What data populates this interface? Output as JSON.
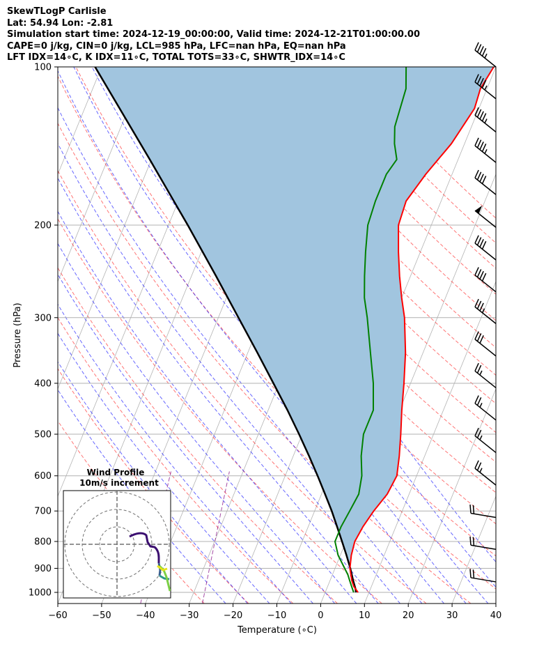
{
  "header": {
    "title": "SkewTLogP Carlisle",
    "location": "Lat: 54.94   Lon: -2.81",
    "times": "Simulation start time: 2024-12-19_00:00:00, Valid time: 2024-12-21T01:00:00.00",
    "indices1": "CAPE=0 j/kg, CIN=0 j/kg, LCL=985 hPa, LFC=nan hPa, EQ=nan hPa",
    "indices2": "LFT IDX=14∘C, K IDX=11∘C, TOTAL TOTS=33∘C, SHWTR_IDX=14∘C"
  },
  "inset": {
    "title": "Wind Profile",
    "subtitle": "10m/s increment"
  },
  "colors": {
    "temperature": "#ff0000",
    "dewpoint": "#008000",
    "parcel": "#000000",
    "shading": "#a1c5df",
    "dry_adiabat": "#ff0000",
    "moist_adiabat": "#0000ff",
    "mixing_ratio": "#800080",
    "isotherm": "#808080"
  },
  "chart_data": {
    "type": "line",
    "subtype": "skew-T log-P diagram",
    "xlabel": "Temperature (∘C)",
    "ylabel": "Pressure (hPa)",
    "xlim": [
      -60,
      40
    ],
    "ylim_hpa": [
      1050,
      100
    ],
    "y_scale": "log",
    "x_ticks": [
      -60,
      -50,
      -40,
      -30,
      -20,
      -10,
      0,
      10,
      20,
      30,
      40
    ],
    "y_ticks": [
      1000,
      900,
      800,
      700,
      600,
      500,
      400,
      300,
      200,
      100
    ],
    "grid": true,
    "series": [
      {
        "key": "temperature",
        "points": [
          [
            1000,
            7.5
          ],
          [
            975,
            6
          ],
          [
            950,
            5
          ],
          [
            925,
            4.2
          ],
          [
            900,
            3.4
          ],
          [
            850,
            2.5
          ],
          [
            800,
            2
          ],
          [
            750,
            2.5
          ],
          [
            700,
            3.5
          ],
          [
            650,
            5
          ],
          [
            600,
            5.5
          ],
          [
            550,
            4.2
          ],
          [
            500,
            2.5
          ],
          [
            450,
            0.5
          ],
          [
            400,
            -1.5
          ],
          [
            350,
            -4
          ],
          [
            300,
            -7.5
          ],
          [
            275,
            -10
          ],
          [
            250,
            -12.5
          ],
          [
            225,
            -15
          ],
          [
            200,
            -17.5
          ],
          [
            180,
            -18
          ],
          [
            160,
            -16
          ],
          [
            140,
            -13
          ],
          [
            120,
            -11
          ],
          [
            110,
            -11.5
          ],
          [
            100,
            -10.5
          ]
        ]
      },
      {
        "key": "dewpoint",
        "points": [
          [
            1000,
            6.5
          ],
          [
            975,
            5.5
          ],
          [
            950,
            4.5
          ],
          [
            925,
            3.5
          ],
          [
            900,
            2.2
          ],
          [
            850,
            -0.5
          ],
          [
            800,
            -2.5
          ],
          [
            750,
            -2.5
          ],
          [
            700,
            -2
          ],
          [
            650,
            -1.5
          ],
          [
            600,
            -2.5
          ],
          [
            550,
            -4.5
          ],
          [
            500,
            -6
          ],
          [
            450,
            -6
          ],
          [
            400,
            -8.5
          ],
          [
            350,
            -12
          ],
          [
            300,
            -16
          ],
          [
            275,
            -18.5
          ],
          [
            250,
            -20.5
          ],
          [
            225,
            -22.5
          ],
          [
            200,
            -24.5
          ],
          [
            180,
            -25
          ],
          [
            160,
            -25
          ],
          [
            150,
            -24
          ],
          [
            140,
            -26
          ],
          [
            130,
            -27.5
          ],
          [
            110,
            -28.5
          ],
          [
            100,
            -30.5
          ]
        ]
      },
      {
        "key": "parcel",
        "points": [
          [
            1000,
            7
          ],
          [
            985,
            6.6
          ],
          [
            950,
            5.3
          ],
          [
            900,
            3.5
          ],
          [
            850,
            1.4
          ],
          [
            800,
            -0.9
          ],
          [
            750,
            -3.4
          ],
          [
            700,
            -6.1
          ],
          [
            650,
            -9.2
          ],
          [
            600,
            -12.6
          ],
          [
            550,
            -16.4
          ],
          [
            500,
            -20.7
          ],
          [
            450,
            -25.6
          ],
          [
            400,
            -31.3
          ],
          [
            350,
            -37.8
          ],
          [
            300,
            -45.4
          ],
          [
            250,
            -54.4
          ],
          [
            200,
            -65.6
          ],
          [
            150,
            -80.4
          ],
          [
            100,
            -101.5
          ]
        ]
      }
    ],
    "wind_barbs": [
      {
        "pressure": 100,
        "speed_kt": 45
      },
      {
        "pressure": 115,
        "speed_kt": 45
      },
      {
        "pressure": 133,
        "speed_kt": 45
      },
      {
        "pressure": 152,
        "speed_kt": 45
      },
      {
        "pressure": 175,
        "speed_kt": 40
      },
      {
        "pressure": 202,
        "speed_kt": 50
      },
      {
        "pressure": 233,
        "speed_kt": 40
      },
      {
        "pressure": 268,
        "speed_kt": 40
      },
      {
        "pressure": 308,
        "speed_kt": 35
      },
      {
        "pressure": 355,
        "speed_kt": 30
      },
      {
        "pressure": 408,
        "speed_kt": 25
      },
      {
        "pressure": 470,
        "speed_kt": 25
      },
      {
        "pressure": 542,
        "speed_kt": 25
      },
      {
        "pressure": 625,
        "speed_kt": 25
      },
      {
        "pressure": 720,
        "speed_kt": 20
      },
      {
        "pressure": 828,
        "speed_kt": 20
      },
      {
        "pressure": 955,
        "speed_kt": 20
      }
    ]
  }
}
